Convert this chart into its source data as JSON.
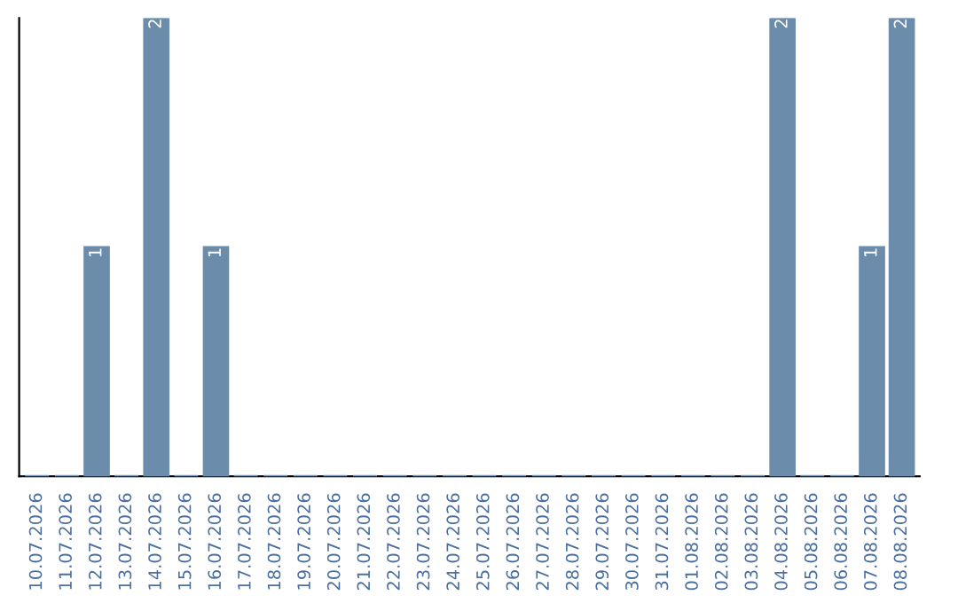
{
  "chart_data": {
    "type": "bar",
    "categories": [
      "10.07.2026",
      "11.07.2026",
      "12.07.2026",
      "13.07.2026",
      "14.07.2026",
      "15.07.2026",
      "16.07.2026",
      "17.07.2026",
      "18.07.2026",
      "19.07.2026",
      "20.07.2026",
      "21.07.2026",
      "22.07.2026",
      "23.07.2026",
      "24.07.2026",
      "25.07.2026",
      "26.07.2026",
      "27.07.2026",
      "28.07.2026",
      "29.07.2026",
      "30.07.2026",
      "31.07.2026",
      "01.08.2026",
      "02.08.2026",
      "03.08.2026",
      "04.08.2026",
      "05.08.2026",
      "06.08.2026",
      "07.08.2026",
      "08.08.2026"
    ],
    "values": [
      0,
      0,
      1,
      0,
      2,
      0,
      1,
      0,
      0,
      0,
      0,
      0,
      0,
      0,
      0,
      0,
      0,
      0,
      0,
      0,
      0,
      0,
      0,
      0,
      0,
      2,
      0,
      0,
      1,
      2
    ],
    "value_labels": [
      null,
      null,
      "1",
      null,
      "2",
      null,
      "1",
      null,
      null,
      null,
      null,
      null,
      null,
      null,
      null,
      null,
      null,
      null,
      null,
      null,
      null,
      null,
      null,
      null,
      null,
      "2",
      null,
      null,
      "1",
      "2"
    ],
    "color": "#6b8cab",
    "ylim": [
      0,
      2
    ],
    "tick_labels": "x",
    "grid": false,
    "legend": false
  }
}
